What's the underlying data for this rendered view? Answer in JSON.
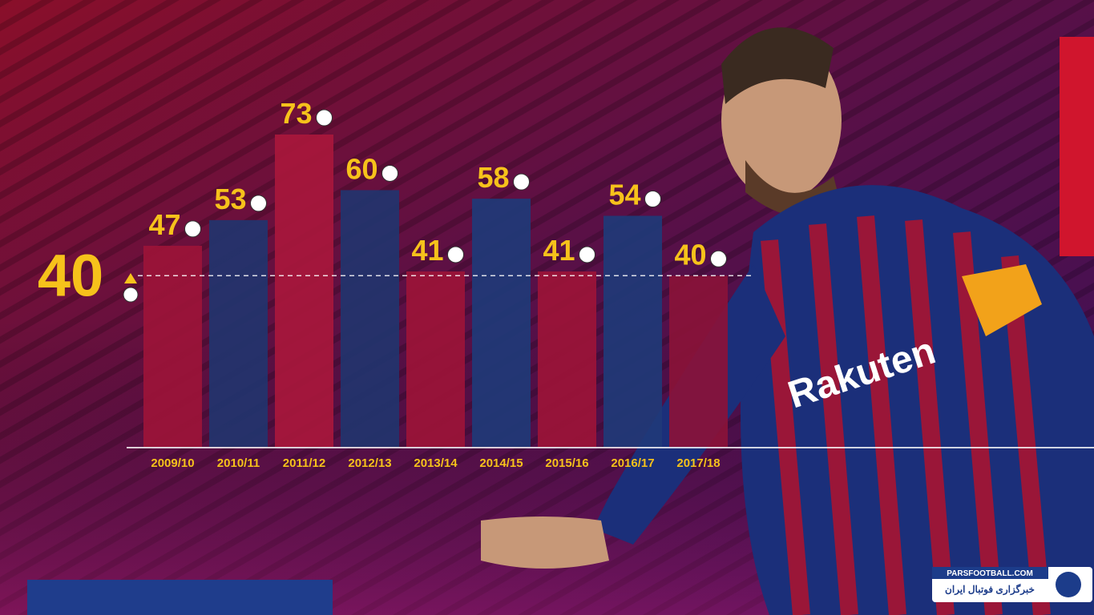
{
  "chart_data": {
    "type": "bar",
    "categories": [
      "2009/10",
      "2010/11",
      "2011/12",
      "2012/13",
      "2013/14",
      "2014/15",
      "2015/16",
      "2016/17",
      "2017/18"
    ],
    "values": [
      47,
      53,
      73,
      60,
      41,
      58,
      41,
      54,
      40
    ],
    "colors": [
      "#9c1438",
      "#22346e",
      "#a8173c",
      "#22346e",
      "#9c1438",
      "#1f3a78",
      "#9c1438",
      "#1f3a78",
      "#8a1238"
    ],
    "reference_line": {
      "value": 40
    },
    "label_color": "#f6c21b"
  },
  "watermark": {
    "site": "PARSFOOTBALL.COM",
    "name": "خبرگزاری فوتبال ایران"
  }
}
